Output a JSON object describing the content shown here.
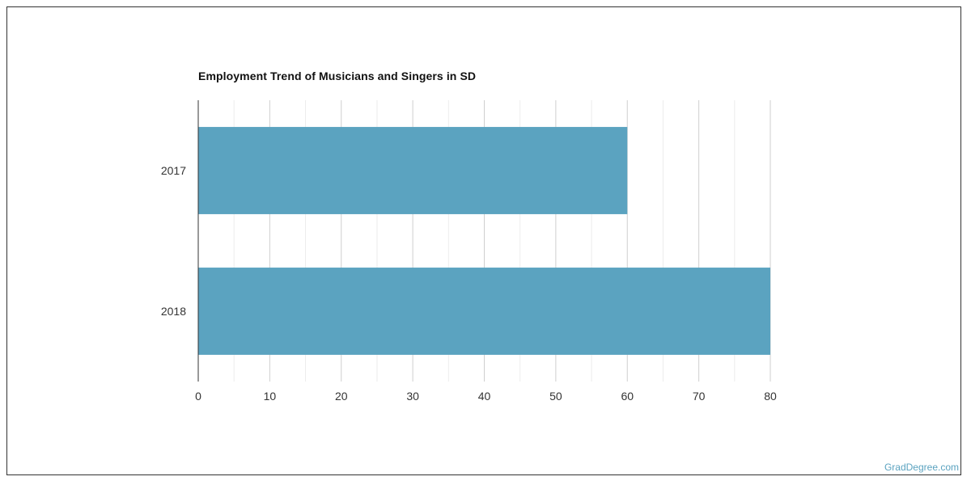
{
  "chart_data": {
    "type": "bar",
    "orientation": "horizontal",
    "title": "Employment Trend of Musicians and Singers in SD",
    "categories": [
      "2017",
      "2018"
    ],
    "values": [
      60,
      80
    ],
    "xlim": [
      0,
      80
    ],
    "x_ticks": [
      0,
      10,
      20,
      30,
      40,
      50,
      60,
      70,
      80
    ],
    "xlabel": "",
    "ylabel": "",
    "grid": true,
    "legend": "none",
    "bar_color": "#5ba3c0"
  },
  "credit": "GradDegree.com"
}
